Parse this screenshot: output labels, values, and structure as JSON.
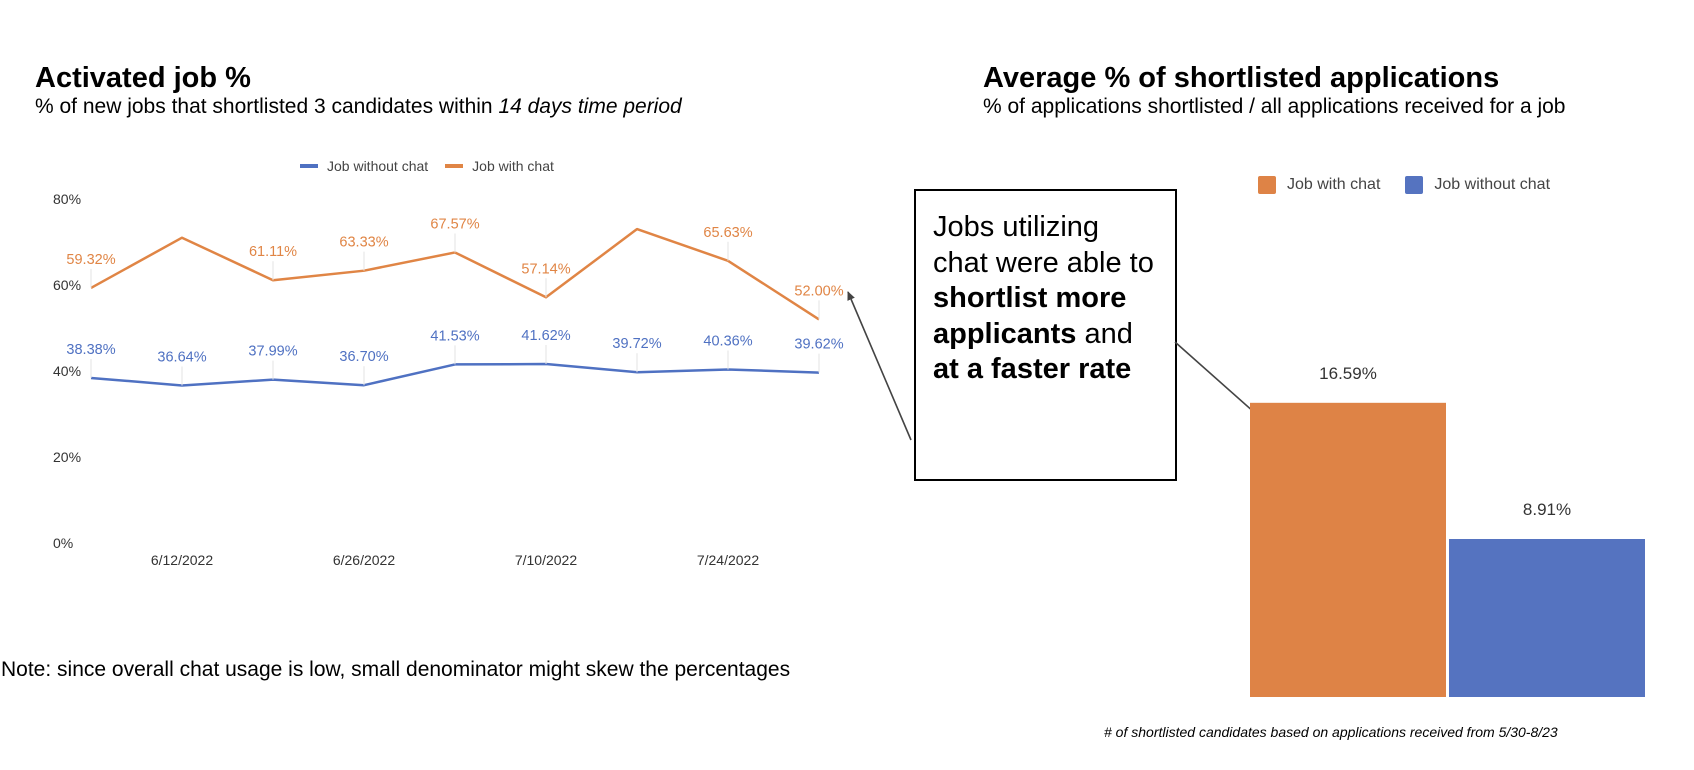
{
  "left_chart": {
    "title": "Activated job %",
    "subtitle_prefix": "% of new jobs that shortlisted 3 candidates within ",
    "subtitle_italic": "14 days time period"
  },
  "right_chart": {
    "title": "Average % of shortlisted applications",
    "subtitle": "% of applications shortlisted / all applications received for a job"
  },
  "callout": {
    "part1": "Jobs utilizing chat were able to ",
    "bold1": "shortlist more applicants",
    "part2": " and ",
    "bold2": "at a faster rate"
  },
  "note": "Note: since overall chat usage is low, small denominator might skew the percentages",
  "footnote": "# of shortlisted candidates based on applications received from 5/30-8/23",
  "colors": {
    "orange": "#E08545",
    "blue": "#4F71C2",
    "orange_bar": "#DE8346",
    "blue_bar": "#5573C0"
  },
  "chart_data": [
    {
      "type": "line",
      "title": "Activated job %",
      "xlabel": "",
      "ylabel": "",
      "ylim": [
        0,
        80
      ],
      "yticks": [
        "0%",
        "20%",
        "40%",
        "60%",
        "80%"
      ],
      "x_tick_labels": [
        "6/12/2022",
        "6/26/2022",
        "7/10/2022",
        "7/24/2022"
      ],
      "legend_position": "top",
      "grid": false,
      "series": [
        {
          "name": "Job without chat",
          "color": "#4F71C2",
          "values": [
            38.38,
            36.64,
            37.99,
            36.7,
            41.53,
            41.62,
            39.72,
            40.36,
            39.62
          ],
          "labels": [
            "38.38%",
            "36.64%",
            "37.99%",
            "36.70%",
            "41.53%",
            "41.62%",
            "39.72%",
            "40.36%",
            "39.62%"
          ]
        },
        {
          "name": "Job with chat",
          "color": "#E08545",
          "values": [
            59.32,
            71.0,
            61.11,
            63.33,
            67.57,
            57.14,
            73.0,
            65.63,
            52.0
          ],
          "labels": [
            "59.32%",
            "",
            "61.11%",
            "63.33%",
            "67.57%",
            "57.14%",
            "",
            "65.63%",
            "52.00%"
          ]
        }
      ]
    },
    {
      "type": "bar",
      "title": "Average % of shortlisted applications",
      "legend_position": "top",
      "series": [
        {
          "name": "Job with chat",
          "color": "#DE8346",
          "value": 16.59,
          "label": "16.59%"
        },
        {
          "name": "Job without chat",
          "color": "#5573C0",
          "value": 8.91,
          "label": "8.91%"
        }
      ]
    }
  ]
}
